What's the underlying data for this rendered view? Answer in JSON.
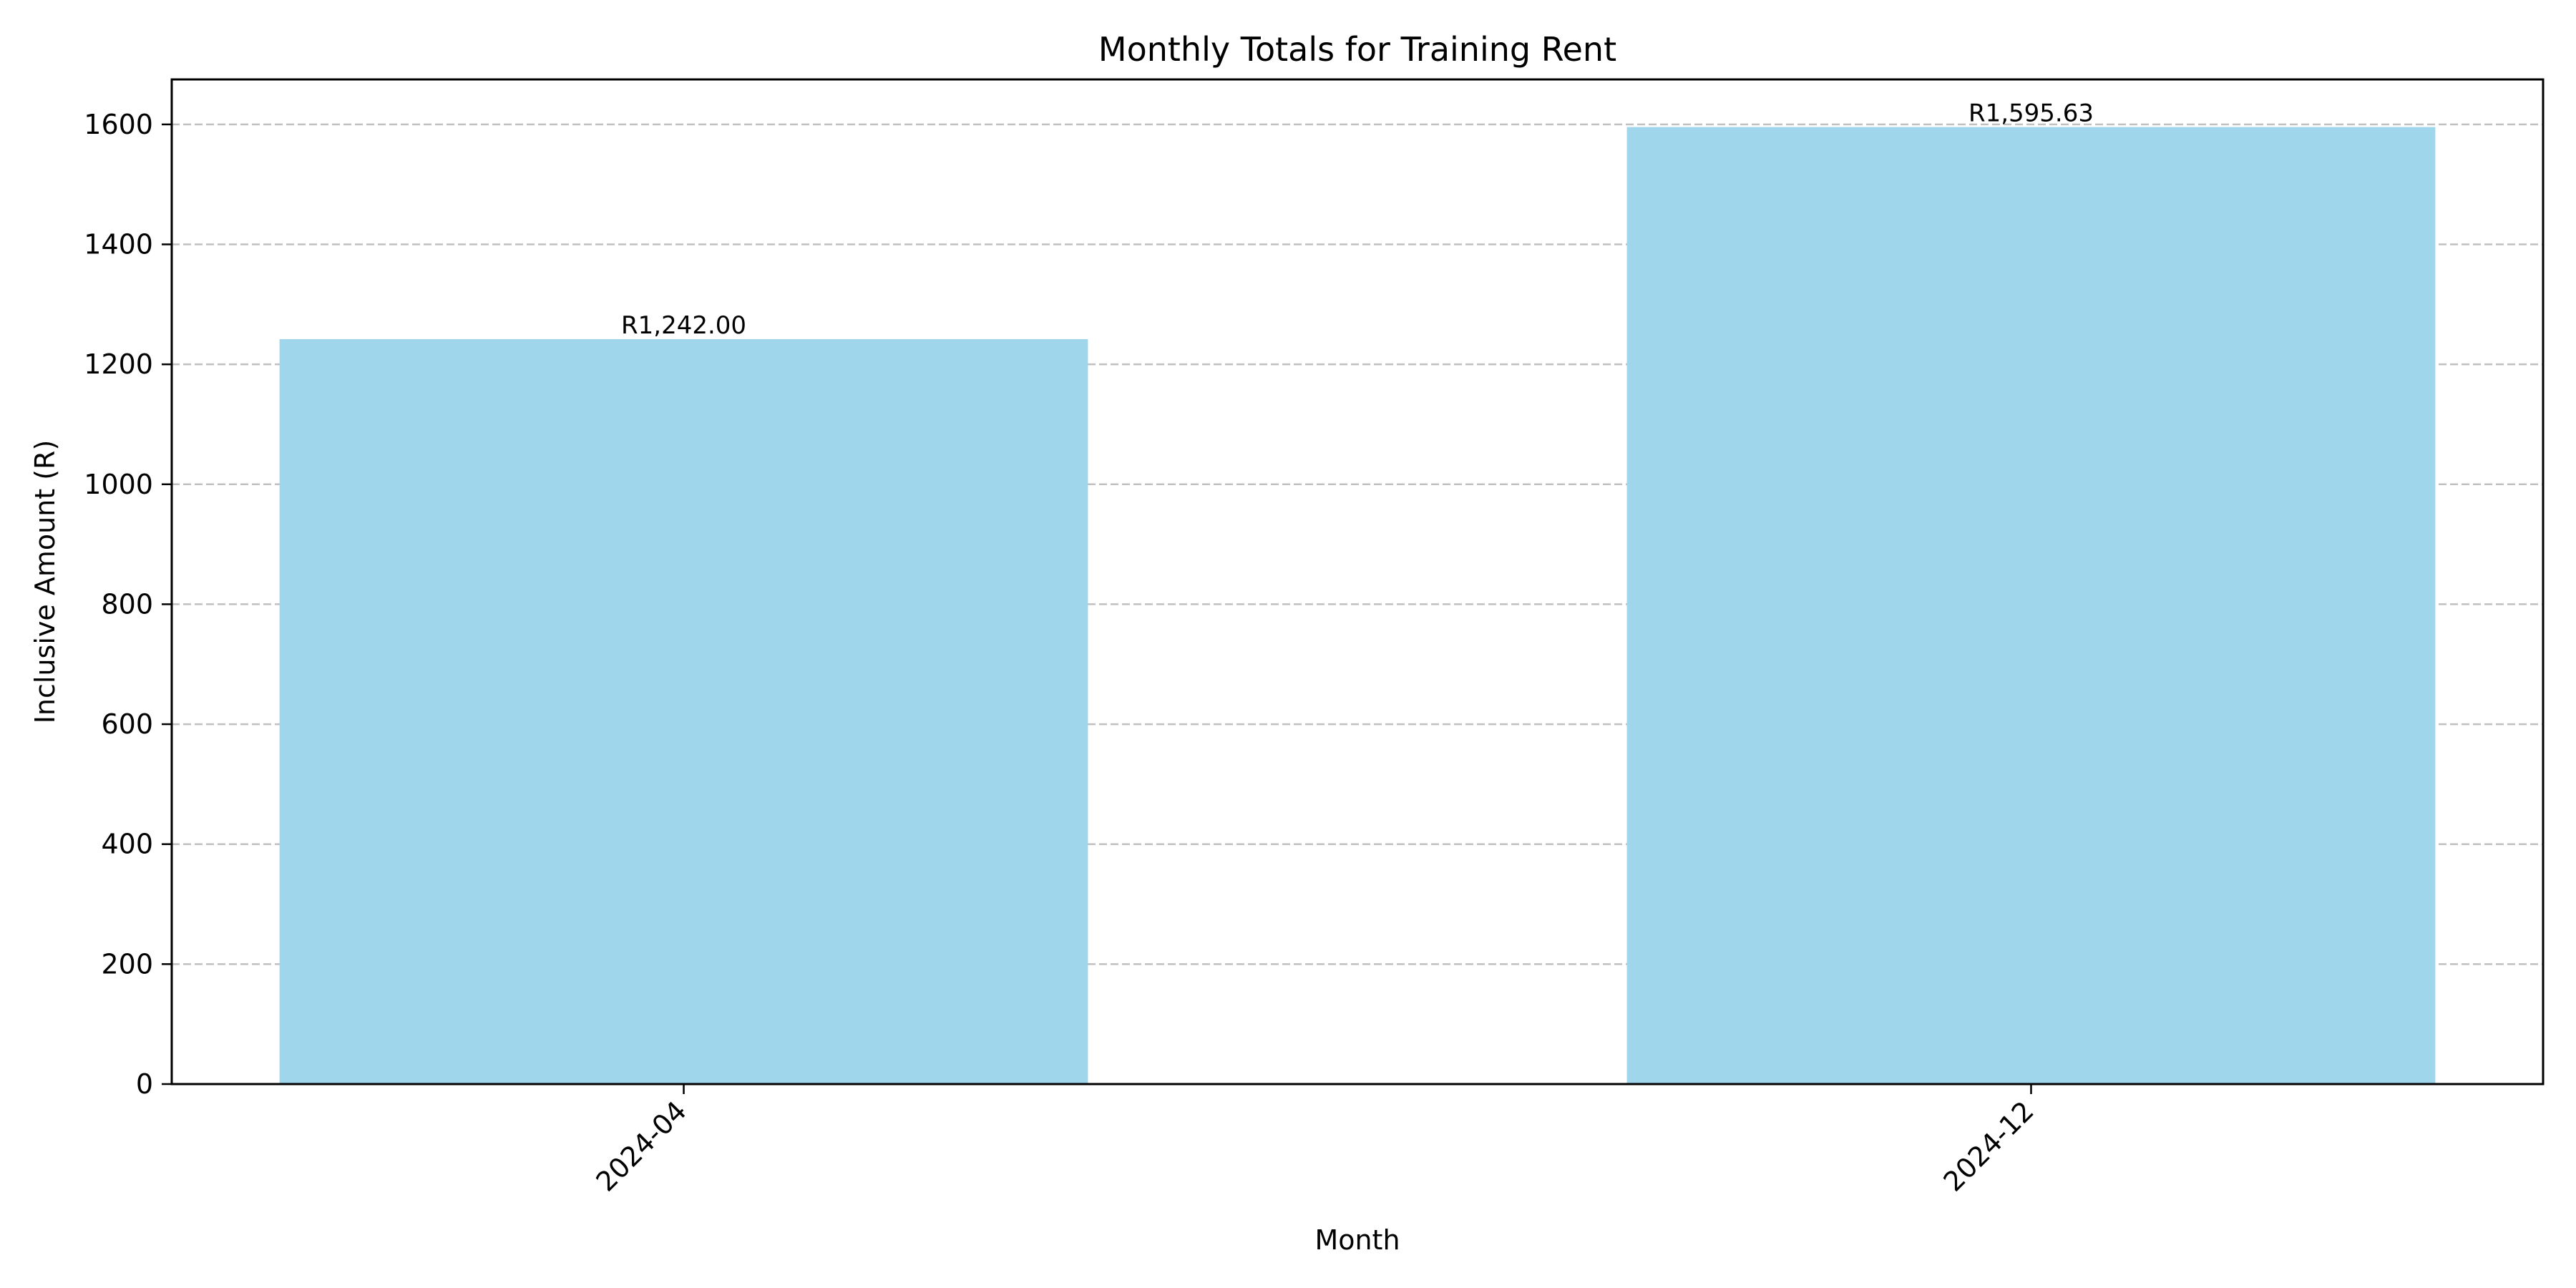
{
  "chart_data": {
    "type": "bar",
    "title": "Monthly Totals for Training Rent",
    "xlabel": "Month",
    "ylabel": "Inclusive Amount (R)",
    "categories": [
      "2024-04",
      "2024-12"
    ],
    "values": [
      1242.0,
      1595.63
    ],
    "data_labels": [
      "R1,242.00",
      "R1,595.63"
    ],
    "ylim": [
      0,
      1675
    ],
    "yticks": [
      0,
      200,
      400,
      600,
      800,
      1000,
      1200,
      1400,
      1600
    ],
    "grid": "y-dashed",
    "legend": "none",
    "bar_color": "#a0d6ec",
    "grid_color": "#c0c0c0",
    "x_tick_rotation": "45-degrees"
  }
}
